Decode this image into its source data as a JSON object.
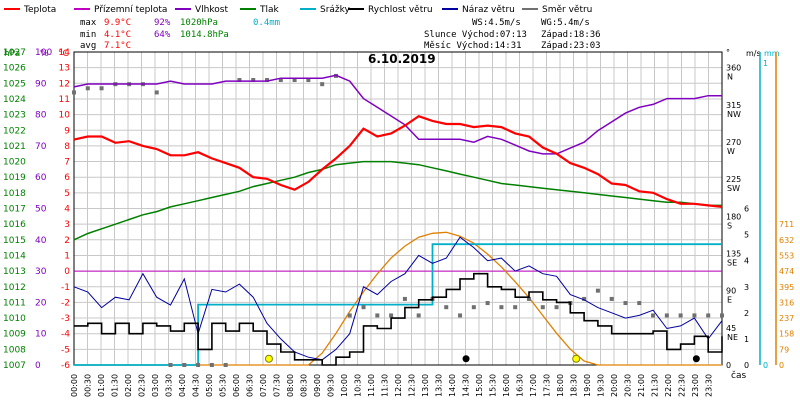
{
  "chart_data": {
    "type": "line",
    "title": "6.10.2019",
    "x_label": "čas",
    "x_ticks": [
      "00:00",
      "00:30",
      "01:00",
      "01:30",
      "02:00",
      "02:30",
      "03:00",
      "03:30",
      "04:00",
      "04:30",
      "05:00",
      "05:30",
      "06:00",
      "06:30",
      "07:00",
      "07:30",
      "08:00",
      "08:30",
      "09:00",
      "09:30",
      "10:00",
      "10:30",
      "11:00",
      "11:30",
      "12:00",
      "12:30",
      "13:00",
      "13:30",
      "14:00",
      "14:30",
      "15:00",
      "15:30",
      "16:00",
      "16:30",
      "17:00",
      "17:30",
      "18:00",
      "18:30",
      "19:00",
      "19:30",
      "20:00",
      "20:30",
      "21:00",
      "21:30",
      "22:00",
      "22:30",
      "23:00",
      "23:30"
    ],
    "legend": [
      {
        "name": "Teplota",
        "color": "#ff0000"
      },
      {
        "name": "Přízemní teplota",
        "color": "#c000c0"
      },
      {
        "name": "Vlhkost",
        "color": "#8000c0"
      },
      {
        "name": "Tlak",
        "color": "#008000"
      },
      {
        "name": "Srážky",
        "color": "#00b0c8"
      },
      {
        "name": "Rychlost větru",
        "color": "#000000"
      },
      {
        "name": "Náraz větru",
        "color": "#0000a0"
      },
      {
        "name": "Směr větru",
        "color": "#707070"
      }
    ],
    "stats": {
      "max_label": "max",
      "min_label": "min",
      "avg_label": "avg",
      "max_temp": "9.9°C",
      "max_hum": "92%",
      "max_press": "1020hPa",
      "max_rain": "0.4mm",
      "min_temp": "4.1°C",
      "min_hum": "64%",
      "min_press": "1014.8hPa",
      "avg_temp": "7.1°C"
    },
    "info": {
      "ws": "WS:4.5m/s",
      "wg": "WG:5.4m/s",
      "sun_rise": "Slunce Východ:07:13",
      "sun_set": "Západ:18:36",
      "moon_rise": "Měsíc  Východ:14:31",
      "moon_set": "Západ:23:03"
    },
    "axes": {
      "pressure": {
        "unit": "hPa",
        "ticks": [
          "1027",
          "1026",
          "1025",
          "1024",
          "1023",
          "1022",
          "1021",
          "1020",
          "1019",
          "1018",
          "1017",
          "1016",
          "1015",
          "1014",
          "1013",
          "1012",
          "1011",
          "1010",
          "1009",
          "1008",
          "1007"
        ]
      },
      "humidity": {
        "unit": "%",
        "ticks": [
          "100",
          "90",
          "80",
          "70",
          "60",
          "50",
          "40",
          "30",
          "20",
          "10",
          "0"
        ]
      },
      "temperature": {
        "unit": "°C",
        "ticks": [
          "14",
          "13",
          "12",
          "11",
          "10",
          "9",
          "8",
          "7",
          "6",
          "5",
          "4",
          "3",
          "2",
          "1",
          "0",
          "-1",
          "-2",
          "-3",
          "-4",
          "-5",
          "-6"
        ]
      },
      "direction": {
        "unit": "°",
        "ticks": [
          "360",
          "315",
          "270",
          "225",
          "180",
          "135",
          "90",
          "45",
          "0"
        ],
        "letters": [
          "N",
          "NW",
          "W",
          "SW",
          "S",
          "SE",
          "E",
          "NE"
        ]
      },
      "wind": {
        "unit": "m/s",
        "ticks": [
          "6",
          "5",
          "4",
          "3",
          "2",
          "1",
          "0"
        ]
      },
      "rain": {
        "unit": "mm",
        "ticks": [
          "1",
          "0"
        ]
      },
      "solar": {
        "ticks": [
          "711",
          "632",
          "553",
          "474",
          "395",
          "316",
          "237",
          "158",
          "79",
          "0"
        ]
      }
    },
    "series": {
      "temperature": [
        8.4,
        8.6,
        8.6,
        8.2,
        8.3,
        8.0,
        7.8,
        7.4,
        7.4,
        7.6,
        7.2,
        6.9,
        6.6,
        6.0,
        5.9,
        5.5,
        5.2,
        5.7,
        6.5,
        7.2,
        8.0,
        9.1,
        8.6,
        8.8,
        9.3,
        9.9,
        9.6,
        9.4,
        9.4,
        9.2,
        9.3,
        9.2,
        8.8,
        8.6,
        7.9,
        7.5,
        6.9,
        6.6,
        6.2,
        5.6,
        5.5,
        5.1,
        5.0,
        4.6,
        4.3,
        4.3,
        4.2,
        4.1
      ],
      "humidity": [
        88,
        89,
        89,
        89,
        89,
        89,
        89,
        90,
        89,
        89,
        89,
        90,
        90,
        90,
        90,
        91,
        91,
        91,
        91,
        92,
        90,
        84,
        81,
        78,
        75,
        70,
        70,
        70,
        70,
        69,
        71,
        70,
        68,
        66,
        65,
        65,
        67,
        69,
        73,
        76,
        79,
        81,
        82,
        84,
        84,
        84,
        85,
        85
      ],
      "pressure": [
        1015.0,
        1015.4,
        1015.7,
        1016.0,
        1016.3,
        1016.6,
        1016.8,
        1017.1,
        1017.3,
        1017.5,
        1017.7,
        1017.9,
        1018.1,
        1018.4,
        1018.6,
        1018.8,
        1019.0,
        1019.3,
        1019.5,
        1019.8,
        1019.9,
        1020.0,
        1020.0,
        1020.0,
        1019.9,
        1019.8,
        1019.6,
        1019.4,
        1019.2,
        1019.0,
        1018.8,
        1018.6,
        1018.5,
        1018.4,
        1018.3,
        1018.2,
        1018.1,
        1018.0,
        1017.9,
        1017.8,
        1017.7,
        1017.6,
        1017.5,
        1017.4,
        1017.4,
        1017.3,
        1017.2,
        1017.2
      ],
      "rain_cumulative": [
        0,
        0,
        0,
        0,
        0,
        0,
        0,
        0,
        0,
        0.2,
        0.2,
        0.2,
        0.2,
        0.2,
        0.2,
        0.2,
        0.2,
        0.2,
        0.2,
        0.2,
        0.2,
        0.2,
        0.2,
        0.2,
        0.2,
        0.2,
        0.4,
        0.4,
        0.4,
        0.4,
        0.4,
        0.4,
        0.4,
        0.4,
        0.4,
        0.4,
        0.4,
        0.4,
        0.4,
        0.4,
        0.4,
        0.4,
        0.4,
        0.4,
        0.4,
        0.4,
        0.4,
        0.4
      ],
      "wind_speed": [
        1.5,
        1.6,
        1.2,
        1.6,
        1.2,
        1.6,
        1.5,
        1.3,
        1.6,
        0.6,
        1.6,
        1.3,
        1.6,
        1.3,
        0.8,
        0.5,
        0.2,
        0.2,
        0.0,
        0.3,
        0.5,
        1.5,
        1.4,
        1.8,
        2.2,
        2.5,
        2.6,
        2.9,
        3.3,
        3.5,
        3.0,
        2.9,
        2.6,
        2.8,
        2.5,
        2.4,
        2.0,
        1.7,
        1.5,
        1.2,
        1.2,
        1.2,
        1.3,
        0.6,
        0.8,
        1.1,
        0.5,
        1.1
      ],
      "wind_gust": [
        3.0,
        2.8,
        2.2,
        2.6,
        2.5,
        3.5,
        2.6,
        2.3,
        3.3,
        1.2,
        2.9,
        2.8,
        3.1,
        2.6,
        1.6,
        1.0,
        0.5,
        0.3,
        0.2,
        0.6,
        1.2,
        3.0,
        2.7,
        3.2,
        3.5,
        4.2,
        3.9,
        4.1,
        4.9,
        4.5,
        4.0,
        4.1,
        3.6,
        3.8,
        3.5,
        3.4,
        2.7,
        2.5,
        2.2,
        2.0,
        1.8,
        1.9,
        2.1,
        1.4,
        1.5,
        1.8,
        1.0,
        1.7
      ],
      "wind_direction": [
        330,
        335,
        335,
        340,
        340,
        340,
        330,
        0,
        0,
        0,
        0,
        0,
        345,
        345,
        345,
        345,
        345,
        345,
        340,
        350,
        60,
        70,
        60,
        60,
        80,
        60,
        80,
        70,
        60,
        70,
        75,
        70,
        70,
        80,
        70,
        70,
        75,
        80,
        90,
        80,
        75,
        75,
        60,
        60,
        60,
        60,
        60,
        60
      ],
      "solar": [
        0,
        0,
        0,
        0,
        0,
        0,
        0,
        0,
        0,
        0,
        0,
        0,
        0,
        0,
        0,
        0,
        0,
        0,
        60,
        160,
        270,
        370,
        460,
        540,
        600,
        645,
        665,
        670,
        650,
        615,
        560,
        495,
        420,
        340,
        250,
        160,
        80,
        20,
        0,
        0,
        0,
        0,
        0,
        0,
        0,
        0,
        0,
        0
      ]
    },
    "markers": {
      "sun_rise_h": 7.22,
      "sun_set_h": 18.6,
      "moon_rise_h": 14.52,
      "moon_set_h": 23.05
    }
  }
}
